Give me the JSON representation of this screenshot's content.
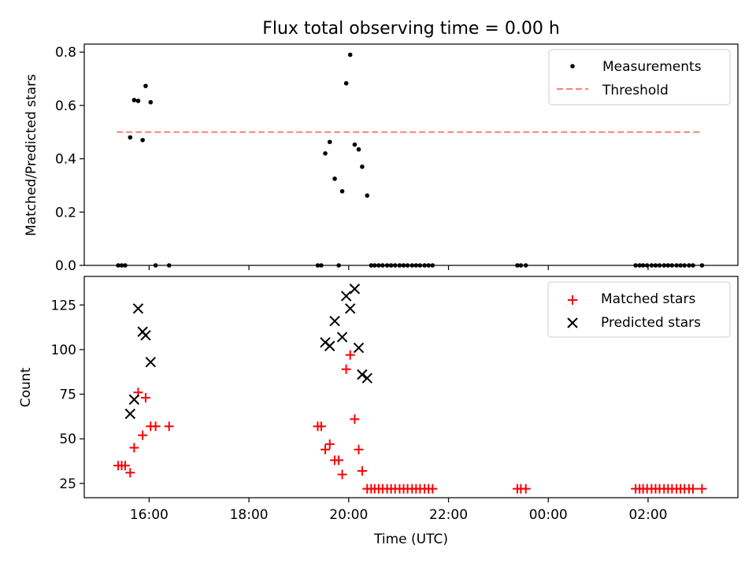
{
  "chart_data": [
    {
      "type": "scatter",
      "title": "Flux total observing time = 0.00 h",
      "ylabel": "Matched/Predicted stars",
      "xlabel": "",
      "x_unit": "hours (UTC, continuing past midnight)",
      "xlim": [
        14.7,
        27.8
      ],
      "ylim": [
        0.0,
        0.83
      ],
      "yticks": [
        0.0,
        0.2,
        0.4,
        0.6,
        0.8
      ],
      "ytick_labels": [
        "0.0",
        "0.2",
        "0.4",
        "0.6",
        "0.8"
      ],
      "legend_position": "top-right",
      "series": [
        {
          "name": "Measurements",
          "marker": "dot",
          "color": "#000000",
          "points": [
            [
              15.38,
              0.0
            ],
            [
              15.45,
              0.0
            ],
            [
              15.52,
              0.0
            ],
            [
              15.62,
              0.48
            ],
            [
              15.7,
              0.62
            ],
            [
              15.78,
              0.617
            ],
            [
              15.87,
              0.47
            ],
            [
              15.93,
              0.673
            ],
            [
              16.03,
              0.612
            ],
            [
              16.13,
              0.0
            ],
            [
              16.4,
              0.0
            ],
            [
              19.38,
              0.0
            ],
            [
              19.45,
              0.0
            ],
            [
              19.53,
              0.42
            ],
            [
              19.62,
              0.463
            ],
            [
              19.72,
              0.325
            ],
            [
              19.8,
              0.0
            ],
            [
              19.87,
              0.278
            ],
            [
              19.95,
              0.683
            ],
            [
              20.03,
              0.79
            ],
            [
              20.12,
              0.453
            ],
            [
              20.2,
              0.435
            ],
            [
              20.27,
              0.37
            ],
            [
              20.37,
              0.262
            ],
            [
              20.45,
              0.0
            ],
            [
              20.52,
              0.0
            ],
            [
              20.6,
              0.0
            ],
            [
              20.68,
              0.0
            ],
            [
              20.77,
              0.0
            ],
            [
              20.85,
              0.0
            ],
            [
              20.93,
              0.0
            ],
            [
              21.02,
              0.0
            ],
            [
              21.1,
              0.0
            ],
            [
              21.18,
              0.0
            ],
            [
              21.27,
              0.0
            ],
            [
              21.35,
              0.0
            ],
            [
              21.43,
              0.0
            ],
            [
              21.52,
              0.0
            ],
            [
              21.6,
              0.0
            ],
            [
              21.68,
              0.0
            ],
            [
              23.38,
              0.0
            ],
            [
              23.45,
              0.0
            ],
            [
              23.55,
              0.0
            ],
            [
              25.75,
              0.0
            ],
            [
              25.83,
              0.0
            ],
            [
              25.9,
              0.0
            ],
            [
              25.98,
              0.0
            ],
            [
              26.07,
              0.0
            ],
            [
              26.15,
              0.0
            ],
            [
              26.23,
              0.0
            ],
            [
              26.32,
              0.0
            ],
            [
              26.4,
              0.0
            ],
            [
              26.48,
              0.0
            ],
            [
              26.57,
              0.0
            ],
            [
              26.65,
              0.0
            ],
            [
              26.73,
              0.0
            ],
            [
              26.82,
              0.0
            ],
            [
              26.9,
              0.0
            ],
            [
              27.08,
              0.0
            ]
          ]
        },
        {
          "name": "Threshold",
          "type": "line",
          "style": "dashed",
          "color": "#ff7f7f",
          "x": [
            15.35,
            27.05
          ],
          "y": [
            0.5,
            0.5
          ]
        }
      ]
    },
    {
      "type": "scatter",
      "title": "",
      "ylabel": "Count",
      "xlabel": "Time (UTC)",
      "xlim": [
        14.7,
        27.8
      ],
      "ylim": [
        17,
        141
      ],
      "yticks": [
        25,
        50,
        75,
        100,
        125
      ],
      "ytick_labels": [
        "25",
        "50",
        "75",
        "100",
        "125"
      ],
      "xticks": [
        16,
        18,
        20,
        22,
        24,
        26
      ],
      "xtick_labels": [
        "16:00",
        "18:00",
        "20:00",
        "22:00",
        "00:00",
        "02:00"
      ],
      "legend_position": "top-right",
      "series": [
        {
          "name": "Matched stars",
          "marker": "plus",
          "color": "#ff0000",
          "points": [
            [
              15.38,
              35
            ],
            [
              15.45,
              35
            ],
            [
              15.52,
              35
            ],
            [
              15.62,
              31
            ],
            [
              15.7,
              45
            ],
            [
              15.78,
              76
            ],
            [
              15.87,
              52
            ],
            [
              15.93,
              73
            ],
            [
              16.03,
              57
            ],
            [
              16.13,
              57
            ],
            [
              16.4,
              57
            ],
            [
              19.38,
              57
            ],
            [
              19.45,
              57
            ],
            [
              19.53,
              44
            ],
            [
              19.62,
              47
            ],
            [
              19.72,
              38
            ],
            [
              19.8,
              38
            ],
            [
              19.87,
              30
            ],
            [
              19.95,
              89
            ],
            [
              20.03,
              97
            ],
            [
              20.12,
              61
            ],
            [
              20.2,
              44
            ],
            [
              20.27,
              32
            ],
            [
              20.37,
              22
            ],
            [
              20.45,
              22
            ],
            [
              20.52,
              22
            ],
            [
              20.6,
              22
            ],
            [
              20.68,
              22
            ],
            [
              20.77,
              22
            ],
            [
              20.85,
              22
            ],
            [
              20.93,
              22
            ],
            [
              21.02,
              22
            ],
            [
              21.1,
              22
            ],
            [
              21.18,
              22
            ],
            [
              21.27,
              22
            ],
            [
              21.35,
              22
            ],
            [
              21.43,
              22
            ],
            [
              21.52,
              22
            ],
            [
              21.6,
              22
            ],
            [
              21.68,
              22
            ],
            [
              23.38,
              22
            ],
            [
              23.45,
              22
            ],
            [
              23.55,
              22
            ],
            [
              25.75,
              22
            ],
            [
              25.83,
              22
            ],
            [
              25.9,
              22
            ],
            [
              25.98,
              22
            ],
            [
              26.07,
              22
            ],
            [
              26.15,
              22
            ],
            [
              26.23,
              22
            ],
            [
              26.32,
              22
            ],
            [
              26.4,
              22
            ],
            [
              26.48,
              22
            ],
            [
              26.57,
              22
            ],
            [
              26.65,
              22
            ],
            [
              26.73,
              22
            ],
            [
              26.82,
              22
            ],
            [
              26.9,
              22
            ],
            [
              27.08,
              22
            ]
          ]
        },
        {
          "name": "Predicted stars",
          "marker": "x",
          "color": "#000000",
          "points": [
            [
              15.62,
              64
            ],
            [
              15.7,
              72
            ],
            [
              15.78,
              123
            ],
            [
              15.87,
              110
            ],
            [
              15.93,
              108
            ],
            [
              16.03,
              93
            ],
            [
              19.53,
              104
            ],
            [
              19.62,
              102
            ],
            [
              19.72,
              116
            ],
            [
              19.87,
              107
            ],
            [
              19.95,
              130
            ],
            [
              20.03,
              123
            ],
            [
              20.12,
              134
            ],
            [
              20.2,
              101
            ],
            [
              20.27,
              86
            ],
            [
              20.37,
              84
            ]
          ]
        }
      ]
    }
  ]
}
